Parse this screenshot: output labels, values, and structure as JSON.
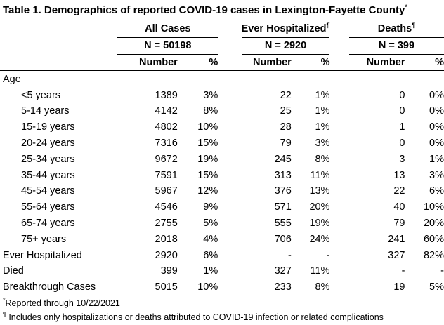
{
  "title": "Table 1. Demographics of reported COVID-19 cases in Lexington-Fayette County",
  "title_mark": "*",
  "groups": {
    "all": {
      "label": "All Cases",
      "mark": "",
      "n": "N =  50198"
    },
    "hosp": {
      "label": "Ever Hospitalized",
      "mark": "¶",
      "n": "N =  2920"
    },
    "deaths": {
      "label": "Deaths",
      "mark": "¶",
      "n": "N =  399"
    }
  },
  "col_headers": {
    "number": "Number",
    "pct": "%"
  },
  "section_label": "Age",
  "rows": [
    {
      "label": "<5 years",
      "all_n": "1389",
      "all_p": "3%",
      "hosp_n": "22",
      "hosp_p": "1%",
      "death_n": "0",
      "death_p": "0%"
    },
    {
      "label": "5-14 years",
      "all_n": "4142",
      "all_p": "8%",
      "hosp_n": "25",
      "hosp_p": "1%",
      "death_n": "0",
      "death_p": "0%"
    },
    {
      "label": "15-19 years",
      "all_n": "4802",
      "all_p": "10%",
      "hosp_n": "28",
      "hosp_p": "1%",
      "death_n": "1",
      "death_p": "0%"
    },
    {
      "label": "20-24 years",
      "all_n": "7316",
      "all_p": "15%",
      "hosp_n": "79",
      "hosp_p": "3%",
      "death_n": "0",
      "death_p": "0%"
    },
    {
      "label": "25-34 years",
      "all_n": "9672",
      "all_p": "19%",
      "hosp_n": "245",
      "hosp_p": "8%",
      "death_n": "3",
      "death_p": "1%"
    },
    {
      "label": "35-44 years",
      "all_n": "7591",
      "all_p": "15%",
      "hosp_n": "313",
      "hosp_p": "11%",
      "death_n": "13",
      "death_p": "3%"
    },
    {
      "label": "45-54 years",
      "all_n": "5967",
      "all_p": "12%",
      "hosp_n": "376",
      "hosp_p": "13%",
      "death_n": "22",
      "death_p": "6%"
    },
    {
      "label": "55-64 years",
      "all_n": "4546",
      "all_p": "9%",
      "hosp_n": "571",
      "hosp_p": "20%",
      "death_n": "40",
      "death_p": "10%"
    },
    {
      "label": "65-74 years",
      "all_n": "2755",
      "all_p": "5%",
      "hosp_n": "555",
      "hosp_p": "19%",
      "death_n": "79",
      "death_p": "20%"
    },
    {
      "label": "75+ years",
      "all_n": "2018",
      "all_p": "4%",
      "hosp_n": "706",
      "hosp_p": "24%",
      "death_n": "241",
      "death_p": "60%"
    }
  ],
  "summary_rows": [
    {
      "label": "Ever Hospitalized",
      "all_n": "2920",
      "all_p": "6%",
      "hosp_n": "-",
      "hosp_p": "-",
      "death_n": "327",
      "death_p": "82%"
    },
    {
      "label": "Died",
      "all_n": "399",
      "all_p": "1%",
      "hosp_n": "327",
      "hosp_p": "11%",
      "death_n": "-",
      "death_p": "-"
    },
    {
      "label": "Breakthrough Cases",
      "all_n": "5015",
      "all_p": "10%",
      "hosp_n": "233",
      "hosp_p": "8%",
      "death_n": "19",
      "death_p": "5%"
    }
  ],
  "footnotes": [
    {
      "mark": "*",
      "text": "Reported through 10/22/2021"
    },
    {
      "mark": "¶",
      "text": " Includes only hospitalizations or deaths attributed to COVID-19 infection or related complications"
    }
  ]
}
